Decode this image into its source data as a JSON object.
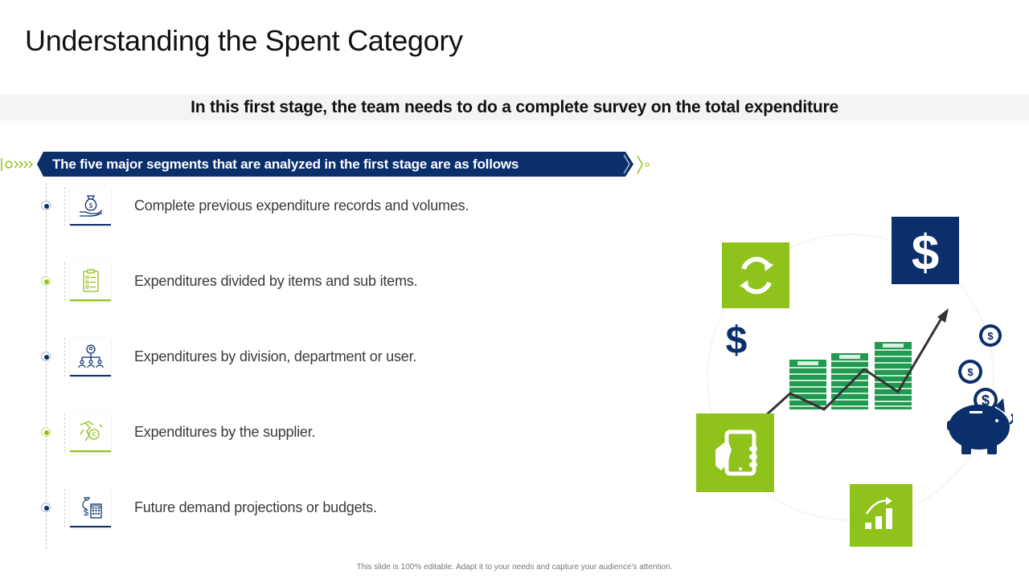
{
  "title": "Understanding the Spent Category",
  "subtitle": "In this first stage, the team needs to do a complete survey on the total expenditure",
  "banner": "The five major segments that are analyzed in the first stage are as follows",
  "items": [
    {
      "text": "Complete previous expenditure records and volumes.",
      "icon": "hand-money-bag-icon",
      "accent": "#0b2f6b"
    },
    {
      "text": "Expenditures divided by items and sub items.",
      "icon": "checklist-clipboard-icon",
      "accent": "#8fc21a"
    },
    {
      "text": "Expenditures by division, department or user.",
      "icon": "org-chart-icon",
      "accent": "#0b2f6b"
    },
    {
      "text": "Expenditures by the supplier.",
      "icon": "supplier-euro-icon",
      "accent": "#8fc21a"
    },
    {
      "text": "Future demand projections or budgets.",
      "icon": "money-calculator-icon",
      "accent": "#0b2f6b"
    }
  ],
  "footer": "This slide is 100% editable. Adapt it to your needs and capture your audience's attention.",
  "illustration": {
    "icons": [
      "refresh-icon",
      "dollar-icon",
      "mobile-payment-icon",
      "growth-chart-icon",
      "piggy-bank-icon",
      "cash-stack-icon",
      "coin-exchange-icon"
    ]
  },
  "colors": {
    "navy": "#0b2f6b",
    "green": "#8fc21a",
    "cash": "#1f9a4f"
  }
}
